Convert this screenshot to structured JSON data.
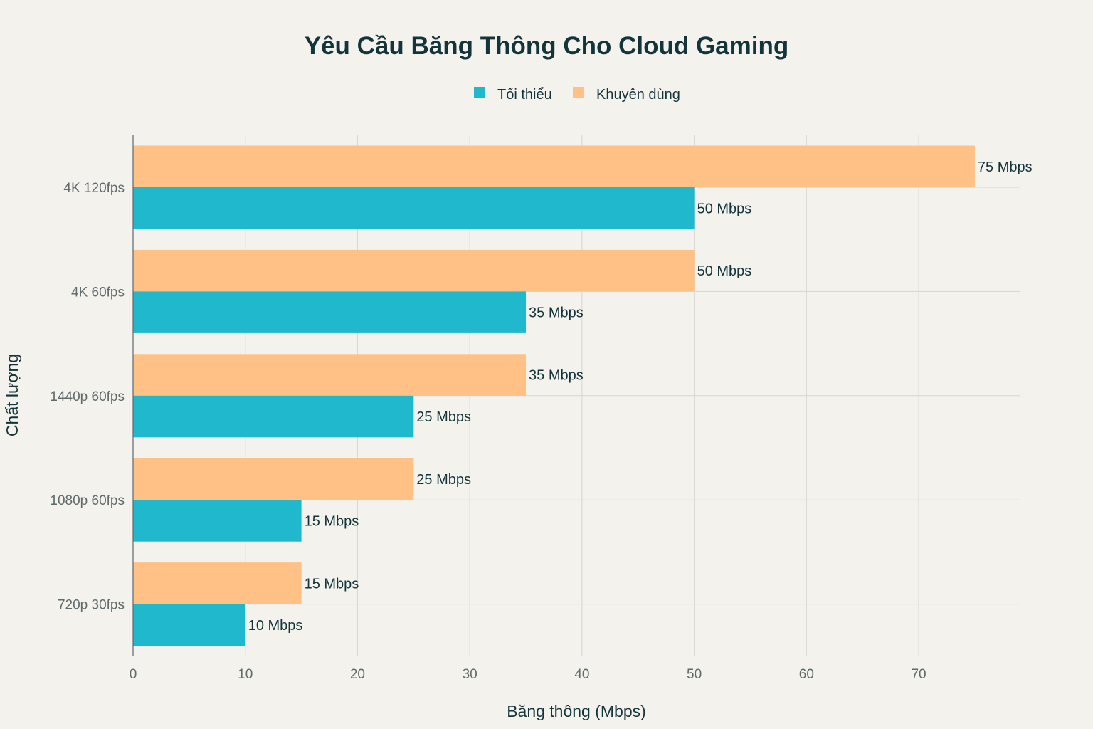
{
  "chart_data": {
    "type": "bar",
    "orientation": "horizontal",
    "title": "Yêu Cầu Băng Thông Cho Cloud Gaming",
    "xlabel": "Băng thông (Mbps)",
    "ylabel": "Chất lượng",
    "categories": [
      "4K 120fps",
      "4K 60fps",
      "1440p 60fps",
      "1080p 60fps",
      "720p 30fps"
    ],
    "series": [
      {
        "name": "Tối thiểu",
        "color": "#1fb8cd",
        "values": [
          50,
          35,
          25,
          15,
          10
        ],
        "labels": [
          "50 Mbps",
          "35 Mbps",
          "25 Mbps",
          "15 Mbps",
          "10 Mbps"
        ]
      },
      {
        "name": "Khuyên dùng",
        "color": "#ffc185",
        "values": [
          75,
          50,
          35,
          25,
          15
        ],
        "labels": [
          "75 Mbps",
          "50 Mbps",
          "35 Mbps",
          "25 Mbps",
          "15 Mbps"
        ]
      }
    ],
    "xlim": [
      0,
      79
    ],
    "xticks": [
      0,
      10,
      20,
      30,
      40,
      50,
      60,
      70
    ],
    "grid": true,
    "legend_position": "top-center"
  }
}
